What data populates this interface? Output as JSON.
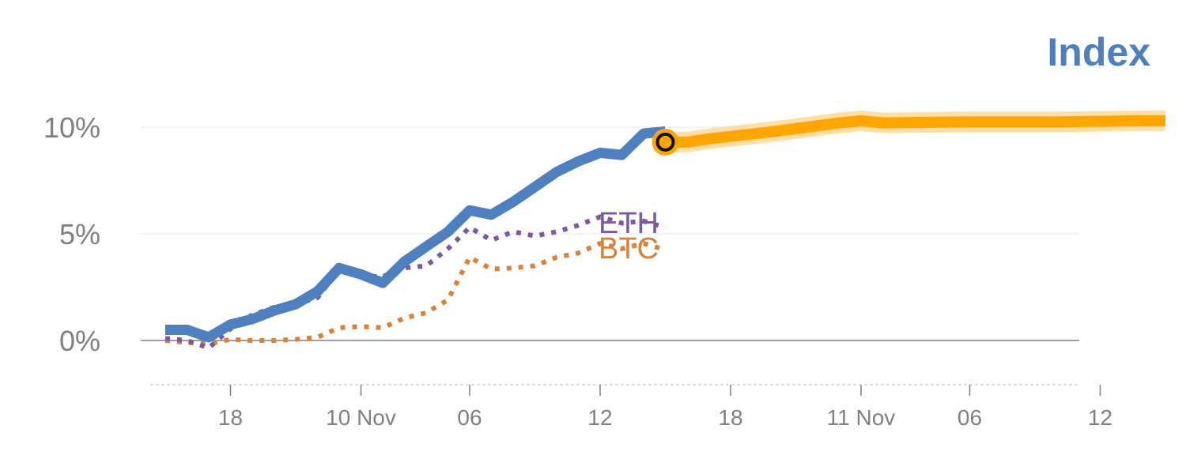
{
  "chart_data": {
    "type": "line",
    "title": "Index",
    "xlabel": "",
    "ylabel": "",
    "ylim": [
      -2,
      12
    ],
    "y_ticks": [
      {
        "value": 0,
        "label": "0%"
      },
      {
        "value": 5,
        "label": "5%"
      },
      {
        "value": 10,
        "label": "10%"
      }
    ],
    "x_ticks": [
      {
        "index": 3,
        "label": "18"
      },
      {
        "index": 9,
        "label": "10 Nov"
      },
      {
        "index": 14,
        "label": "06"
      },
      {
        "index": 20,
        "label": "12"
      },
      {
        "index": 26,
        "label": "18"
      },
      {
        "index": 32,
        "label": "11 Nov"
      },
      {
        "index": 37,
        "label": "06"
      },
      {
        "index": 43,
        "label": "12"
      }
    ],
    "x_range": [
      0,
      48
    ],
    "grid": true,
    "colors": {
      "index": "#4e7fbf",
      "forecast": "#ffa500",
      "forecast_glow": "#ffd27f",
      "eth": "#7b5b9e",
      "btc": "#d9823b",
      "title": "#4e7fbf",
      "gridline": "#e6e6e6",
      "zero_line": "#808080",
      "tick_text": "#808080"
    },
    "series": [
      {
        "key": "index",
        "style": "solid",
        "x": [
          0,
          1,
          2,
          3,
          4,
          5,
          6,
          7,
          8,
          9,
          10,
          11,
          12,
          13,
          14,
          15,
          16,
          17,
          18,
          19,
          20,
          21,
          22,
          23
        ],
        "values": [
          0.5,
          0.5,
          0.15,
          0.75,
          1.0,
          1.4,
          1.7,
          2.3,
          3.4,
          3.1,
          2.7,
          3.7,
          4.4,
          5.1,
          6.1,
          5.9,
          6.5,
          7.2,
          7.9,
          8.4,
          8.8,
          8.7,
          9.7,
          9.8
        ]
      },
      {
        "key": "index_forecast",
        "style": "band",
        "x": [
          23,
          24,
          25,
          28,
          31,
          32,
          33,
          37,
          41,
          45,
          46
        ],
        "values": [
          9.3,
          9.3,
          9.45,
          9.8,
          10.2,
          10.3,
          10.2,
          10.25,
          10.25,
          10.3,
          10.3
        ]
      },
      {
        "key": "eth",
        "name": "ETH",
        "style": "dotted",
        "x": [
          0,
          1,
          2,
          3,
          4,
          5,
          6,
          7,
          8,
          9,
          10,
          11,
          12,
          13,
          14,
          15,
          16,
          17,
          18,
          19,
          20,
          21,
          22,
          23
        ],
        "values": [
          0.1,
          0.0,
          -0.35,
          0.55,
          1.2,
          1.55,
          1.7,
          2.0,
          3.35,
          3.0,
          3.0,
          3.4,
          3.5,
          4.3,
          5.3,
          4.7,
          5.1,
          4.9,
          5.1,
          5.4,
          5.8,
          5.5,
          5.6,
          5.3
        ]
      },
      {
        "key": "btc",
        "name": "BTC",
        "style": "dotted",
        "x": [
          0,
          1,
          2,
          3,
          4,
          5,
          6,
          7,
          8,
          9,
          10,
          11,
          12,
          13,
          14,
          15,
          16,
          17,
          18,
          19,
          20,
          21,
          22,
          23
        ],
        "values": [
          0.0,
          -0.1,
          -0.15,
          0.05,
          0.0,
          0.0,
          0.05,
          0.15,
          0.6,
          0.65,
          0.6,
          1.05,
          1.3,
          1.9,
          3.9,
          3.35,
          3.4,
          3.5,
          3.9,
          4.1,
          4.55,
          4.3,
          4.55,
          4.25
        ]
      }
    ],
    "marker": {
      "x": 23,
      "y": 9.3
    }
  }
}
